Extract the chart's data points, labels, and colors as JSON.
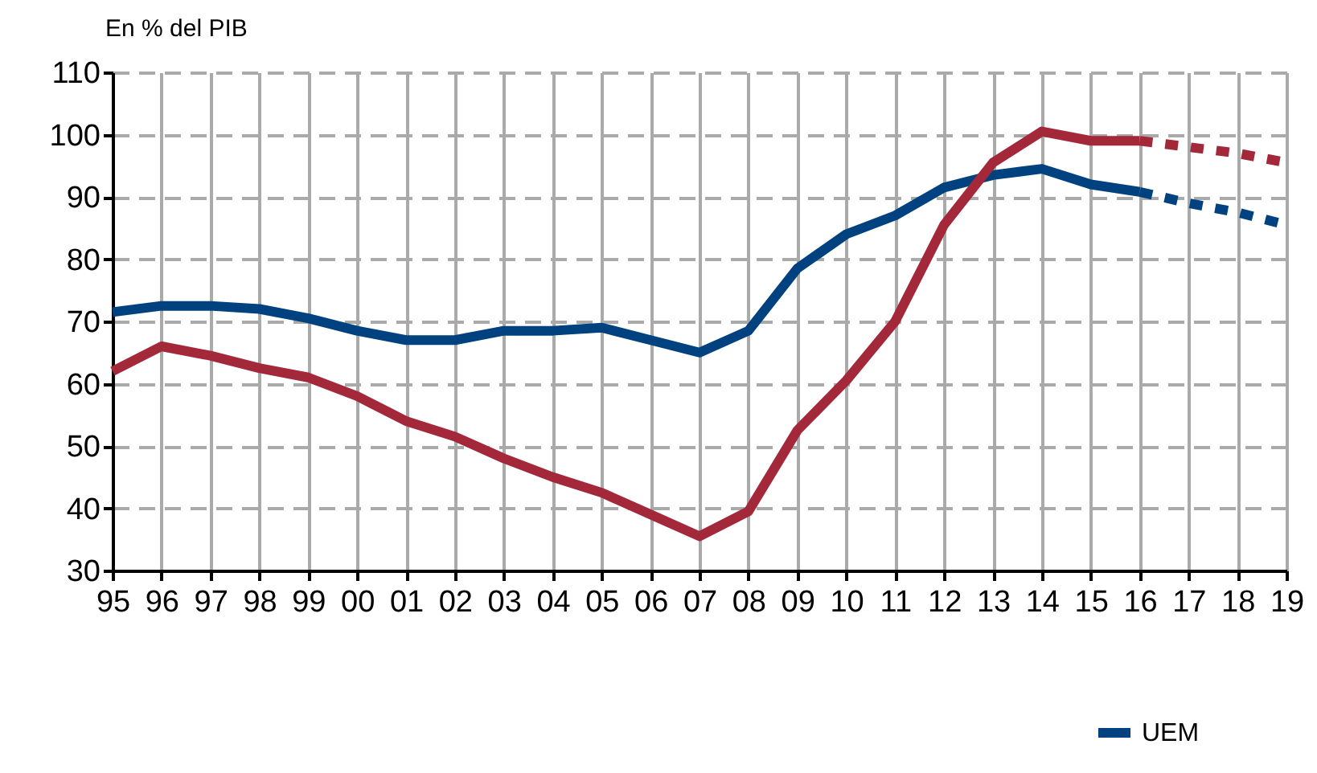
{
  "chart_data": {
    "type": "line",
    "ylabel": "En % del PIB",
    "categories": [
      "95",
      "96",
      "97",
      "98",
      "99",
      "00",
      "01",
      "02",
      "03",
      "04",
      "05",
      "06",
      "07",
      "08",
      "09",
      "10",
      "11",
      "12",
      "13",
      "14",
      "15",
      "16",
      "17",
      "18",
      "19"
    ],
    "series": [
      {
        "name": "UEM",
        "color": "#00427f",
        "line_style": "solid",
        "values": [
          71.5,
          72.5,
          72.5,
          72,
          70.5,
          68.5,
          67,
          67,
          68.5,
          68.5,
          69,
          67,
          65,
          68.5,
          78.5,
          84,
          87,
          91.5,
          93.5,
          94.5,
          92,
          90.8,
          null,
          null,
          null
        ]
      },
      {
        "color": "#a3283a",
        "line_style": "solid",
        "values": [
          62,
          66,
          64.5,
          62.5,
          61,
          58,
          54,
          51.5,
          48,
          45,
          42.5,
          39,
          35.5,
          39.5,
          52.5,
          60.5,
          70,
          85.5,
          95.5,
          100.5,
          99,
          99,
          null,
          null,
          null
        ]
      },
      {
        "color": "#00427f",
        "line_style": "dotted",
        "values": [
          null,
          null,
          null,
          null,
          null,
          null,
          null,
          null,
          null,
          null,
          null,
          null,
          null,
          null,
          null,
          null,
          null,
          null,
          null,
          null,
          null,
          90.8,
          89,
          87.5,
          85.5
        ]
      },
      {
        "color": "#a3283a",
        "line_style": "dotted",
        "values": [
          null,
          null,
          null,
          null,
          null,
          null,
          null,
          null,
          null,
          null,
          null,
          null,
          null,
          null,
          null,
          null,
          null,
          null,
          null,
          null,
          null,
          99,
          98,
          97,
          95.5
        ]
      }
    ],
    "ylim": [
      30,
      110
    ],
    "yticks": [
      30,
      40,
      50,
      60,
      70,
      80,
      90,
      100,
      110
    ],
    "grid": true,
    "legend": "bottom right"
  }
}
